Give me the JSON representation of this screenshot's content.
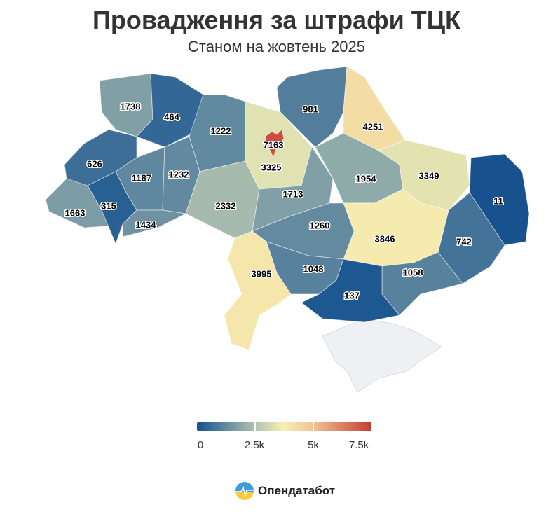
{
  "header": {
    "title": "Провадження за штрафи ТЦК",
    "subtitle": "Станом на жовтень 2025"
  },
  "map": {
    "regions": [
      {
        "value": 1738
      },
      {
        "value": 464
      },
      {
        "value": 626
      },
      {
        "value": 1187
      },
      {
        "value": 1232
      },
      {
        "value": 1222
      },
      {
        "value": 1663
      },
      {
        "value": 315
      },
      {
        "value": 1434
      },
      {
        "value": 2332
      },
      {
        "value": 3325
      },
      {
        "value": 981
      },
      {
        "value": 4251
      },
      {
        "value": 1713
      },
      {
        "value": 1954
      },
      {
        "value": 3349
      },
      {
        "value": 11
      },
      {
        "value": 742
      },
      {
        "value": 3846
      },
      {
        "value": 1260
      },
      {
        "value": 1048
      },
      {
        "value": 3995
      },
      {
        "value": 1058
      },
      {
        "value": 137
      },
      {
        "value": 7163
      }
    ],
    "no_data_color": "#eef0f3"
  },
  "legend": {
    "min": 0,
    "max": 7500,
    "ticks": [
      "0",
      "2.5k",
      "5k",
      "7.5k"
    ],
    "color_stops": [
      {
        "at": 0,
        "color": "#16528f"
      },
      {
        "at": 2500,
        "color": "#b0c2b0"
      },
      {
        "at": 3700,
        "color": "#f6f0b2"
      },
      {
        "at": 5000,
        "color": "#f0c493"
      },
      {
        "at": 7500,
        "color": "#c43c36"
      }
    ]
  },
  "brand": {
    "name": "Опендатабот"
  }
}
